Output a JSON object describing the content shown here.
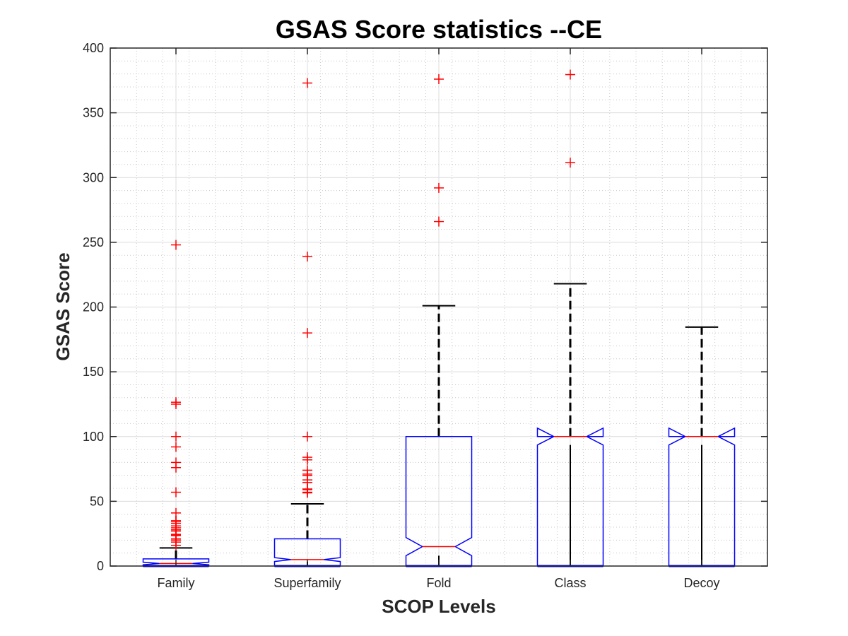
{
  "chart_data": {
    "type": "boxplot",
    "title": "GSAS Score statistics --CE",
    "xlabel": "SCOP Levels",
    "ylabel": "GSAS Score",
    "ylim": [
      0,
      400
    ],
    "xlim": [
      0.5,
      5.5
    ],
    "yticks": [
      "0",
      "50",
      "100",
      "150",
      "200",
      "250",
      "300",
      "350",
      "400"
    ],
    "ytick_values": [
      0,
      50,
      100,
      150,
      200,
      250,
      300,
      350,
      400
    ],
    "grid": "on (major and minor)",
    "notched": true,
    "categories": [
      "Family",
      "Superfamily",
      "Fold",
      "Class",
      "Decoy"
    ],
    "colors": {
      "box": "#0000ff",
      "median": "#ff0000",
      "whisker": "#000000",
      "outlier": "#ff0000",
      "grid_major": "#dcdcdc",
      "grid_minor": "#c8c8c8",
      "axis": "#262626"
    },
    "series": [
      {
        "name": "Family",
        "min": 0,
        "q1": 0,
        "median": 2,
        "q3": 5.5,
        "whisker_high": 14,
        "notch_low": 1,
        "notch_high": 3,
        "outliers": [
          16,
          18.5,
          20,
          21,
          23.5,
          24,
          24.5,
          27,
          28,
          29.5,
          31,
          33,
          34.5,
          35,
          41,
          57,
          76,
          80,
          92,
          100,
          125,
          126.5,
          248
        ]
      },
      {
        "name": "Superfamily",
        "min": 0,
        "q1": 0,
        "median": 5,
        "q3": 21,
        "whisker_high": 48,
        "notch_low": 3.5,
        "notch_high": 6.5,
        "outliers": [
          56.5,
          57,
          59,
          59.5,
          64.5,
          66.5,
          70,
          71,
          74,
          82,
          84,
          100,
          180,
          239,
          373
        ]
      },
      {
        "name": "Fold",
        "min": 0,
        "q1": 0,
        "median": 15,
        "q3": 100,
        "whisker_high": 201,
        "notch_low": 8,
        "notch_high": 22,
        "outliers": [
          266,
          292,
          376
        ]
      },
      {
        "name": "Class",
        "min": 0,
        "q1": 0,
        "median": 100,
        "q3": 100,
        "whisker_high": 218,
        "notch_low": 93.5,
        "notch_high": 106.5,
        "outliers": [
          311.5,
          379.5
        ]
      },
      {
        "name": "Decoy",
        "min": 0,
        "q1": 0,
        "median": 100,
        "q3": 100,
        "whisker_high": 184.5,
        "notch_low": 93.5,
        "notch_high": 106.5,
        "outliers": []
      }
    ]
  }
}
